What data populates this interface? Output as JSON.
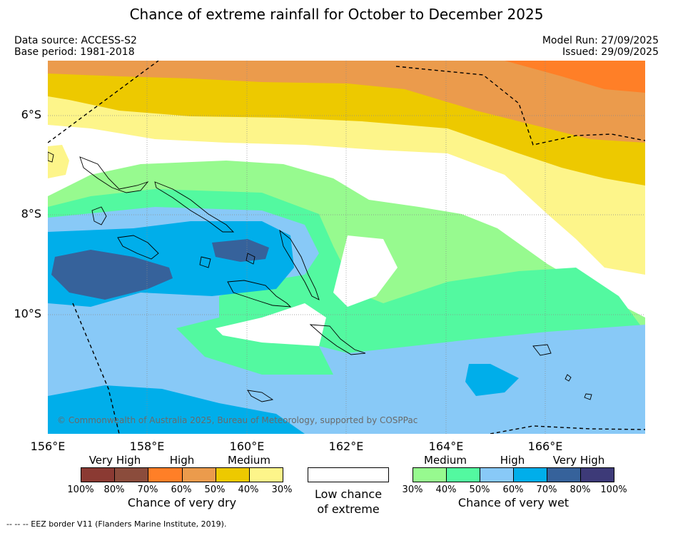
{
  "title": "Chance of extreme rainfall for October to December 2025",
  "meta": {
    "data_source": "Data source: ACCESS-S2",
    "base_period": "Base period: 1981-2018",
    "model_run": "Model Run: 27/09/2025",
    "issued": "Issued: 29/09/2025"
  },
  "map": {
    "lat_labels": [
      "6°S",
      "8°S",
      "10°S"
    ],
    "lon_labels": [
      "156°E",
      "158°E",
      "160°E",
      "162°E",
      "164°E",
      "166°E"
    ],
    "copyright": "© Commonwealth of Australia 2025, Bureau of Meteorology, supported by COSPPac"
  },
  "legend": {
    "dry": {
      "categories": [
        "Very High",
        "High",
        "Medium"
      ],
      "colors": [
        "#8b3a33",
        "#8b4c3c",
        "#ff7f27",
        "#eb9b4c",
        "#edc900",
        "#fdf58a"
      ],
      "ticks": [
        "100%",
        "80%",
        "70%",
        "60%",
        "50%",
        "40%",
        "30%"
      ],
      "title": "Chance of very dry"
    },
    "low": {
      "title_line1": "Low chance",
      "title_line2": "of extreme"
    },
    "wet": {
      "categories": [
        "Medium",
        "High",
        "Very High"
      ],
      "colors": [
        "#97fa8f",
        "#53f9a0",
        "#88c9f7",
        "#00aeea",
        "#36629b",
        "#3d3a78"
      ],
      "ticks": [
        "30%",
        "40%",
        "50%",
        "60%",
        "70%",
        "80%",
        "100%"
      ],
      "title": "Chance of very wet"
    }
  },
  "footnote": "--  --  -- EEZ border V11 (Flanders Marine Institute, 2019)."
}
